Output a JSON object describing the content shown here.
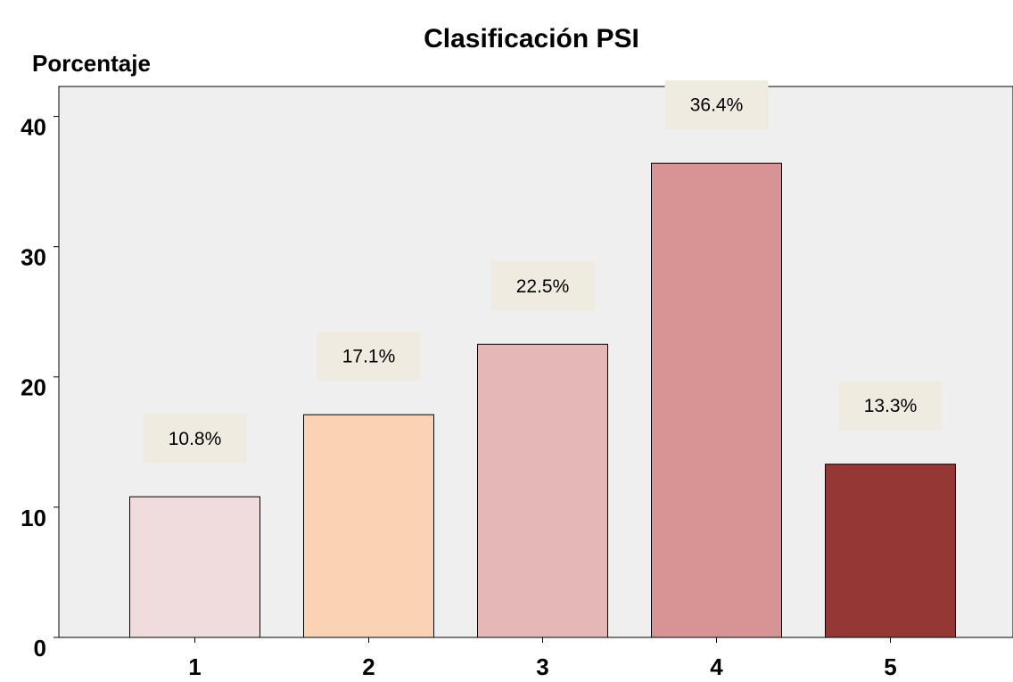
{
  "chart_data": {
    "type": "bar",
    "title": "Clasificación PSI",
    "y_label": "Porcentaje",
    "categories": [
      "1",
      "2",
      "3",
      "4",
      "5"
    ],
    "values": [
      10.8,
      17.1,
      22.5,
      36.4,
      13.3
    ],
    "value_labels": [
      "10.8%",
      "17.1%",
      "22.5%",
      "36.4%",
      "13.3%"
    ],
    "colors": [
      "#f0dcdc",
      "#fad3b4",
      "#e5b7b7",
      "#d89494",
      "#953735"
    ],
    "ylim": [
      0,
      42.3
    ],
    "yticks": [
      0,
      10,
      20,
      30,
      40
    ]
  }
}
